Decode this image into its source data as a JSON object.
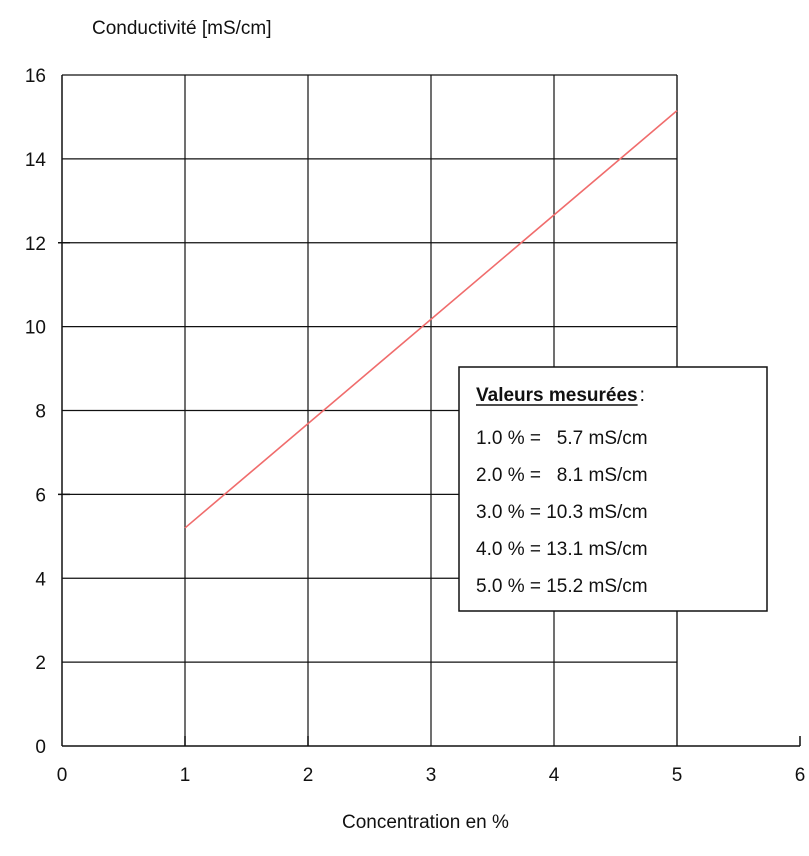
{
  "chart_data": {
    "type": "line",
    "ylabel": "Conductivité [mS/cm]",
    "xlabel": "Concentration en %",
    "xlim": [
      0,
      6
    ],
    "ylim": [
      0,
      16
    ],
    "x_ticks": [
      "0",
      "1",
      "2",
      "3",
      "4",
      "5",
      "6"
    ],
    "y_ticks": [
      "0",
      "2",
      "4",
      "6",
      "8",
      "10",
      "12",
      "14",
      "16"
    ],
    "grid": true,
    "series": [
      {
        "x": [
          1,
          5
        ],
        "y": [
          5.2,
          15.15
        ],
        "color": "#f06c6c"
      }
    ],
    "legend": {
      "placement": "center-right",
      "title": "Valeurs mesurées",
      "title_suffix": " :",
      "entries": [
        "1.0 % =   5.7 mS/cm",
        "2.0 % =   8.1 mS/cm",
        "3.0 % = 10.3 mS/cm",
        "4.0 % = 13.1 mS/cm",
        "5.0 % = 15.2 mS/cm"
      ]
    }
  }
}
